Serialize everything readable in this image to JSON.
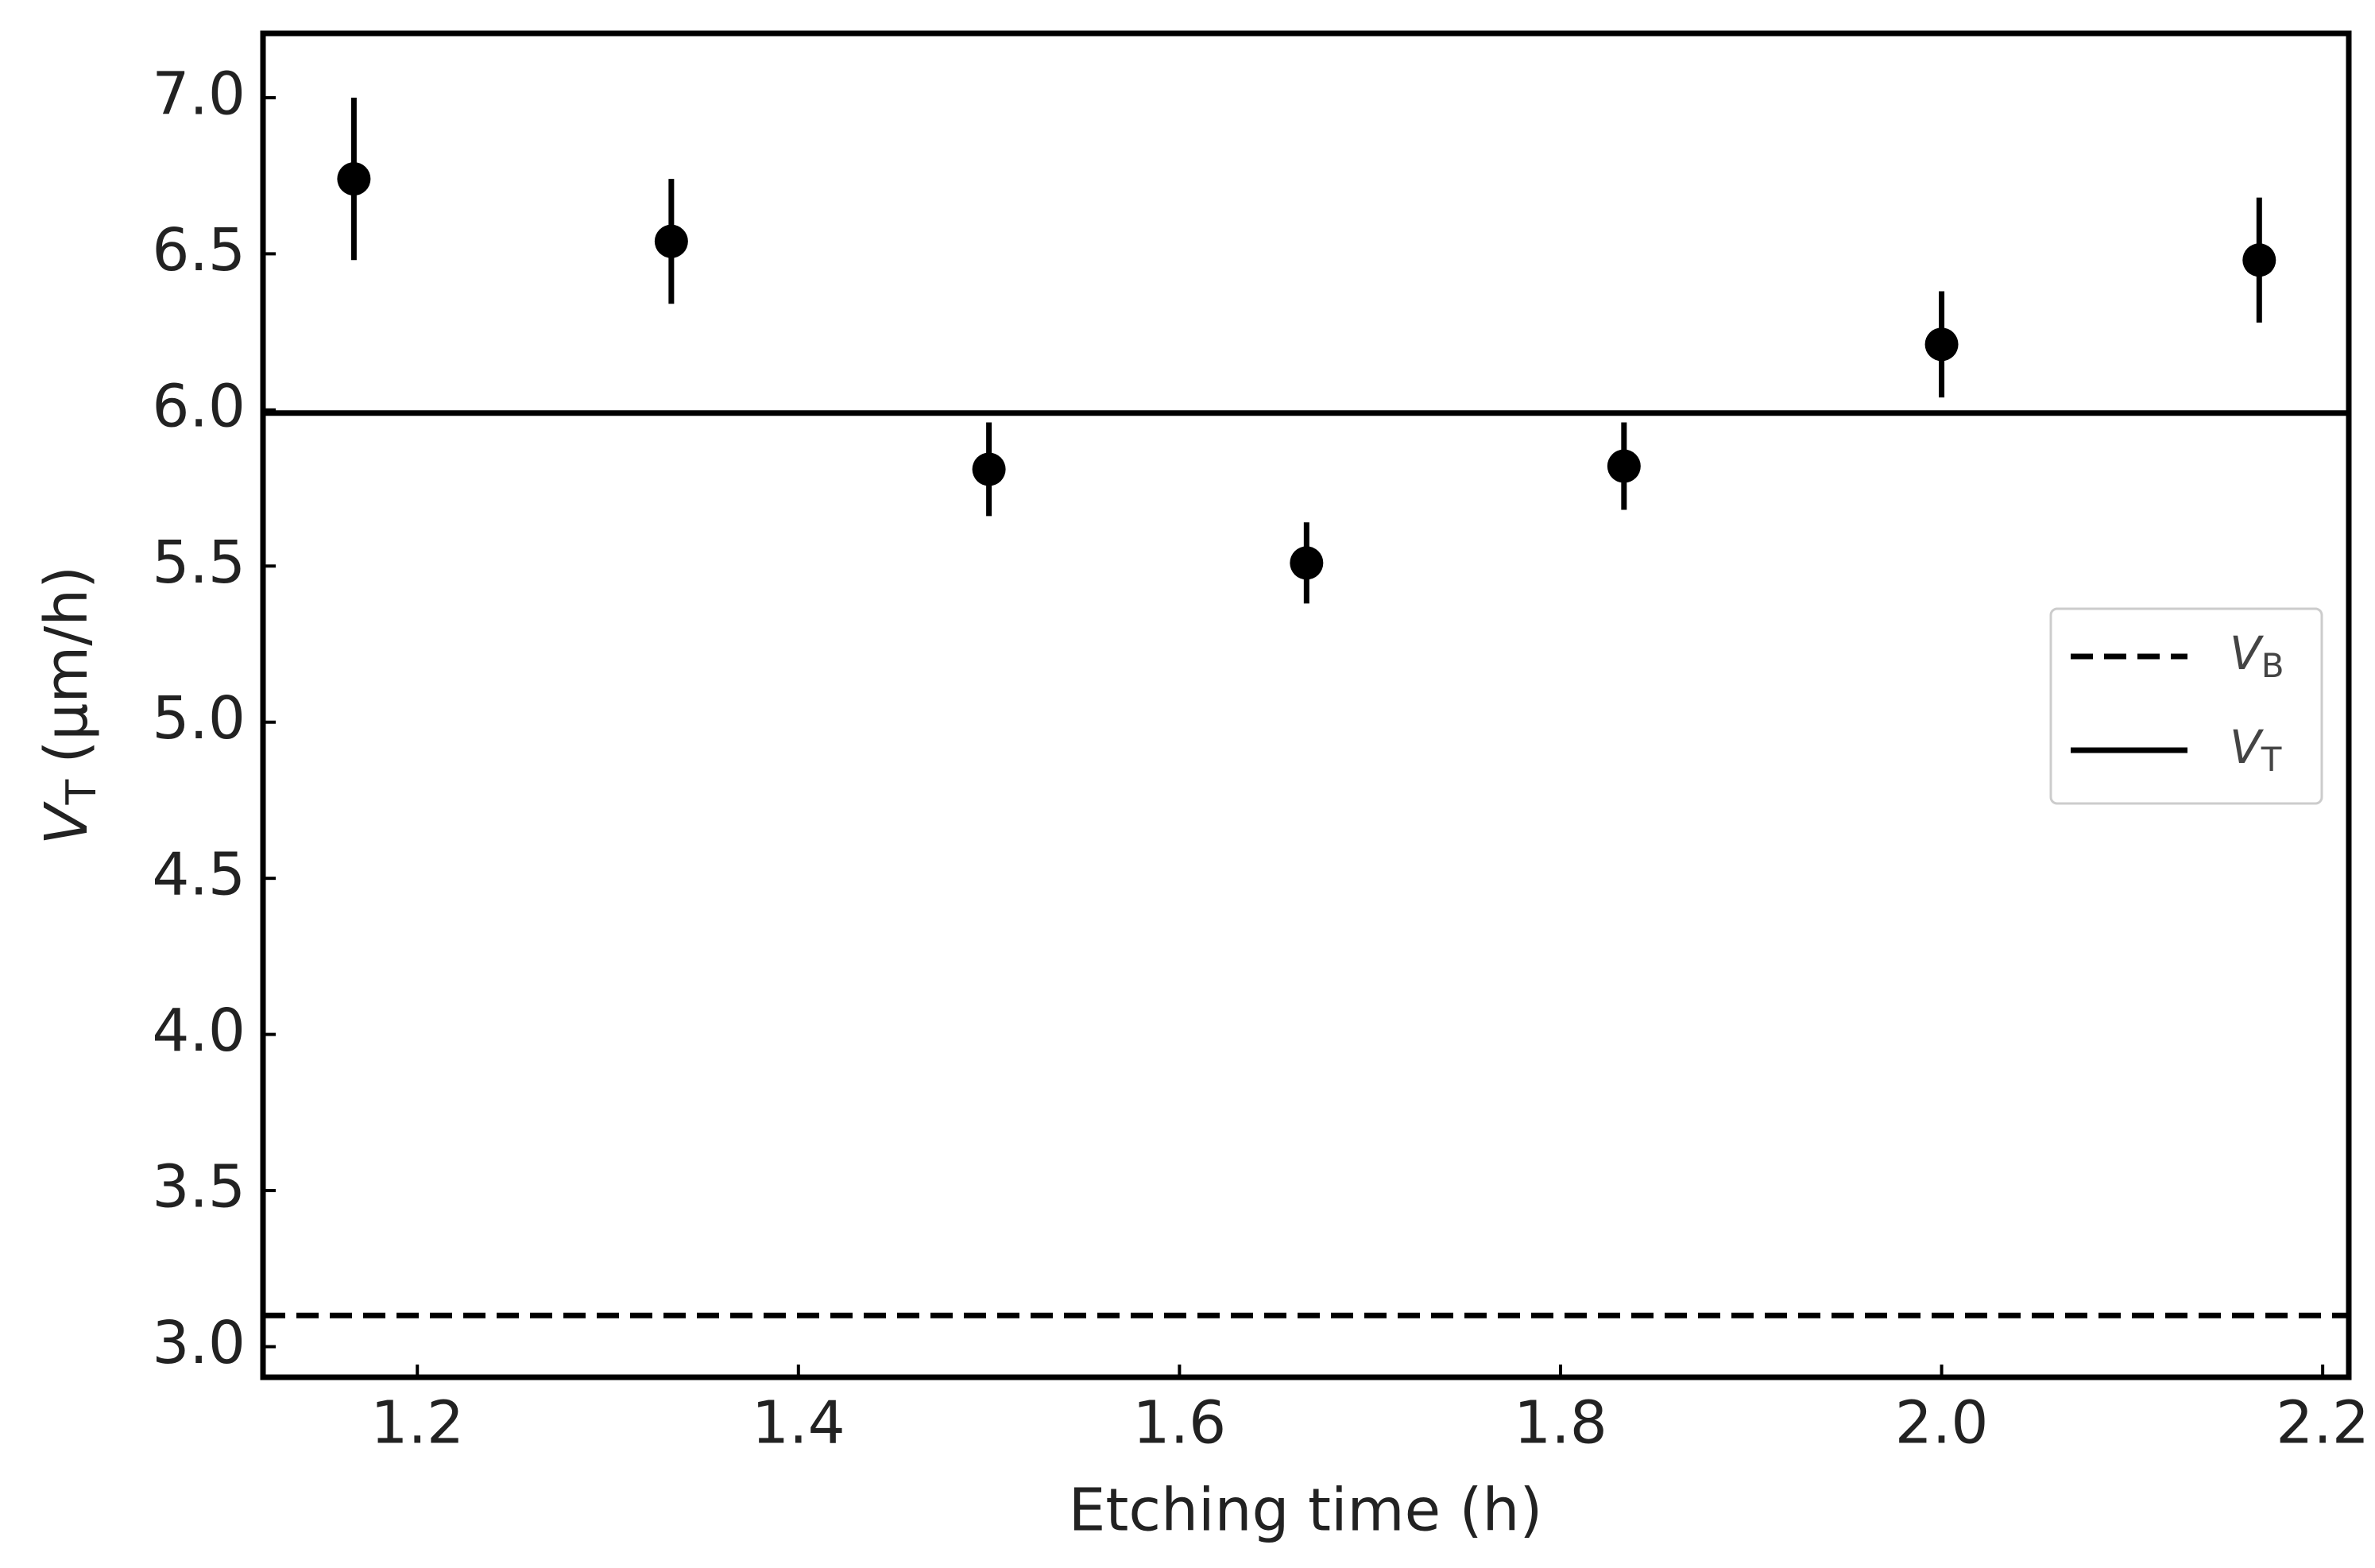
{
  "chart_data": {
    "type": "scatter",
    "xlabel": "Etching time (h)",
    "ylabel": {
      "symbol": "V",
      "subscript": "T",
      "text": "(μm/h)"
    },
    "x": [
      1.1667,
      1.3333,
      1.5,
      1.6667,
      1.8333,
      2.0,
      2.1667
    ],
    "series": [
      {
        "color": "#000000",
        "values": [
          6.74,
          6.54,
          5.81,
          5.51,
          5.82,
          6.21,
          6.48
        ],
        "errors": [
          0.26,
          0.2,
          0.15,
          0.13,
          0.14,
          0.17,
          0.2
        ]
      }
    ],
    "lines": [
      {
        "symbol": "V",
        "subscript": "B",
        "value": 3.1,
        "style": "dashed",
        "color": "#000000"
      },
      {
        "symbol": "V",
        "subscript": "T",
        "value": 5.99,
        "style": "solid",
        "color": "#000000"
      }
    ],
    "xlim": [
      1.119,
      2.2137
    ],
    "ylim": [
      2.902,
      7.206
    ],
    "xticks": [
      {
        "value": 1.2,
        "label": "1.2"
      },
      {
        "value": 1.4,
        "label": "1.4"
      },
      {
        "value": 1.6,
        "label": "1.6"
      },
      {
        "value": 1.8,
        "label": "1.8"
      },
      {
        "value": 2.0,
        "label": "2.0"
      },
      {
        "value": 2.2,
        "label": "2.2"
      }
    ],
    "yticks": [
      {
        "value": 3.0,
        "label": "3.0"
      },
      {
        "value": 3.5,
        "label": "3.5"
      },
      {
        "value": 4.0,
        "label": "4.0"
      },
      {
        "value": 4.5,
        "label": "4.5"
      },
      {
        "value": 5.0,
        "label": "5.0"
      },
      {
        "value": 5.5,
        "label": "5.5"
      },
      {
        "value": 6.0,
        "label": "6.0"
      },
      {
        "value": 6.5,
        "label": "6.5"
      },
      {
        "value": 7.0,
        "label": "7.0"
      }
    ],
    "grid": false,
    "legend": "center right"
  }
}
